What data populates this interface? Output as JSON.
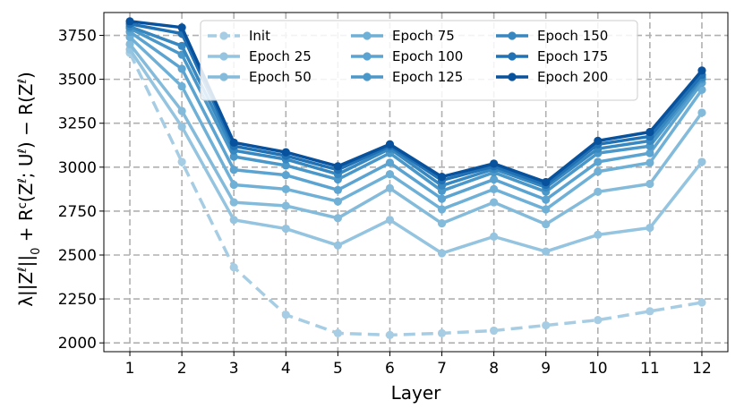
{
  "chart_data": {
    "type": "line",
    "xlabel": "Layer",
    "ylabel": "λ||Z^ℓ||₀ + R^c(Z^ℓ; U^ℓ) − R(Z^ℓ)",
    "ylabel_parts": {
      "lambda": "λ||Z",
      "sup1": "ℓ",
      "norm": "||",
      "sub0": "0",
      "plus": " + R",
      "supc": "c",
      "open": "(Z",
      "sup2": "ℓ",
      "semi": "; U",
      "sup3": "ℓ",
      "close": ") − R(Z",
      "sup4": "ℓ",
      "end": ")"
    },
    "x": [
      1,
      2,
      3,
      4,
      5,
      6,
      7,
      8,
      9,
      10,
      11,
      12
    ],
    "xlim": [
      0.5,
      12.5
    ],
    "ylim": [
      1950,
      3880
    ],
    "yticks": [
      2000,
      2250,
      2500,
      2750,
      3000,
      3250,
      3500,
      3750
    ],
    "grid": true,
    "legend": {
      "placement": "top-center",
      "columns": 3
    },
    "series": [
      {
        "name": "Init",
        "color": "#a6cde3",
        "dashed": true,
        "values": [
          3650,
          3030,
          2430,
          2160,
          2055,
          2045,
          2055,
          2070,
          2100,
          2130,
          2180,
          2230
        ]
      },
      {
        "name": "Epoch 25",
        "color": "#94c4df",
        "dashed": false,
        "values": [
          3670,
          3230,
          2700,
          2650,
          2555,
          2700,
          2510,
          2605,
          2520,
          2615,
          2655,
          3030
        ]
      },
      {
        "name": "Epoch 50",
        "color": "#84bbdb",
        "dashed": false,
        "values": [
          3700,
          3320,
          2800,
          2780,
          2710,
          2880,
          2680,
          2800,
          2675,
          2860,
          2905,
          3310
        ]
      },
      {
        "name": "Epoch 75",
        "color": "#6fb0d7",
        "dashed": false,
        "values": [
          3740,
          3460,
          2900,
          2875,
          2805,
          2960,
          2760,
          2875,
          2760,
          2975,
          3025,
          3440
        ]
      },
      {
        "name": "Epoch 100",
        "color": "#5ba3d0",
        "dashed": false,
        "values": [
          3770,
          3560,
          2985,
          2955,
          2870,
          3025,
          2820,
          2930,
          2815,
          3030,
          3080,
          3480
        ]
      },
      {
        "name": "Epoch 125",
        "color": "#4a98c9",
        "dashed": false,
        "values": [
          3790,
          3640,
          3060,
          3010,
          2930,
          3080,
          2865,
          2970,
          2860,
          3080,
          3120,
          3500
        ]
      },
      {
        "name": "Epoch 150",
        "color": "#3787c0",
        "dashed": false,
        "values": [
          3800,
          3690,
          3095,
          3045,
          2960,
          3105,
          2895,
          2990,
          2885,
          3105,
          3150,
          3510
        ]
      },
      {
        "name": "Epoch 175",
        "color": "#2171b5",
        "dashed": false,
        "values": [
          3815,
          3760,
          3120,
          3065,
          2985,
          3120,
          2925,
          3005,
          2900,
          3130,
          3175,
          3525
        ]
      },
      {
        "name": "Epoch 200",
        "color": "#08519c",
        "dashed": false,
        "values": [
          3830,
          3795,
          3140,
          3085,
          3005,
          3130,
          2945,
          3020,
          2915,
          3150,
          3200,
          3550
        ]
      }
    ]
  }
}
